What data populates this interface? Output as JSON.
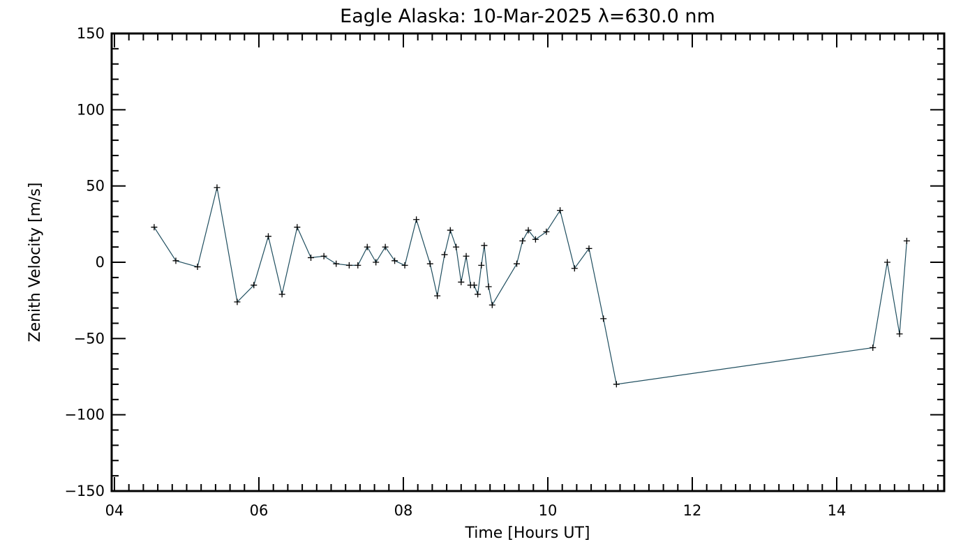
{
  "chart_data": {
    "type": "line",
    "title": "Eagle Alaska: 10-Mar-2025 λ=630.0 nm",
    "xlabel": "Time [Hours UT]",
    "ylabel": "Zenith Velocity [m/s]",
    "xlim": [
      4,
      15.6
    ],
    "ylim": [
      -150,
      150
    ],
    "x_ticks": [
      4,
      6,
      8,
      10,
      12,
      14
    ],
    "x_tick_labels": [
      "04",
      "06",
      "08",
      "10",
      "12",
      "14"
    ],
    "y_ticks": [
      -150,
      -100,
      -50,
      0,
      50,
      100,
      150
    ],
    "y_tick_labels": [
      "−150",
      "−100",
      "−50",
      "0",
      "50",
      "100",
      "150"
    ],
    "line_color": "#1f4e5f",
    "marker": "plus",
    "series": [
      {
        "x": [
          4.55,
          4.85,
          5.15,
          5.42,
          5.7,
          5.93,
          6.13,
          6.32,
          6.53,
          6.72,
          6.9,
          7.07,
          7.25,
          7.37,
          7.5,
          7.62,
          7.75,
          7.88,
          8.02,
          8.18,
          8.37,
          8.47,
          8.57,
          8.65,
          8.73,
          8.8,
          8.87,
          8.93,
          8.98,
          9.03,
          9.08,
          9.12,
          9.18,
          9.23,
          9.57,
          9.65,
          9.73,
          9.83,
          9.98,
          10.17,
          10.37,
          10.57,
          10.77,
          10.95,
          14.5,
          14.7,
          14.87,
          14.97
        ],
        "y": [
          23,
          1,
          -3,
          49,
          -26,
          -15,
          17,
          -21,
          23,
          3,
          4,
          -1,
          -2,
          -2,
          10,
          0,
          10,
          1,
          -2,
          28,
          -1,
          -22,
          5,
          21,
          10,
          -13,
          4,
          -15,
          -15,
          -21,
          -2,
          11,
          -16,
          -28,
          -1,
          14,
          21,
          15,
          20,
          34,
          -4,
          9,
          -37,
          -80,
          -56,
          0,
          -47,
          14
        ]
      }
    ]
  }
}
